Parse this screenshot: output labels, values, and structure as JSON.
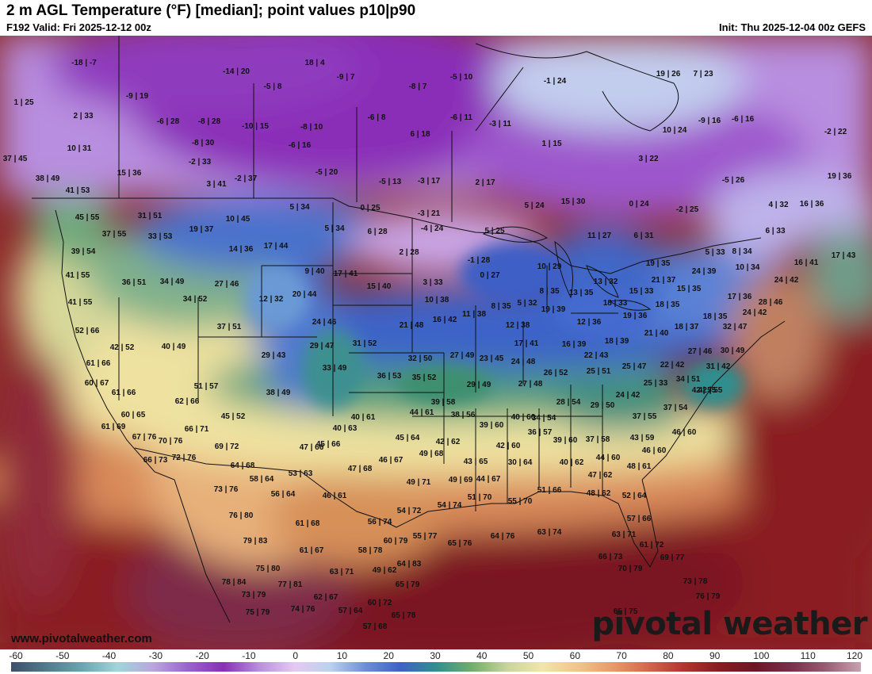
{
  "header": {
    "title": "2 m AGL Temperature (°F) [median]; point values p10|p90",
    "valid": "F192 Valid: Fri 2025-12-12 00z",
    "init": "Init: Thu 2025-12-04 00z GEFS"
  },
  "watermark": {
    "url": "www.pivotalweather.com",
    "logo": "pivotal weather"
  },
  "colorbar": {
    "labels": [
      "-60",
      "-50",
      "-40",
      "-30",
      "-20",
      "-10",
      "0",
      "10",
      "20",
      "30",
      "40",
      "50",
      "60",
      "70",
      "80",
      "90",
      "100",
      "110",
      "120"
    ],
    "colors": [
      "#3d4f6b",
      "#4f7c8c",
      "#67a6b0",
      "#9fd6d9",
      "#b9a6e0",
      "#9a62d0",
      "#8a2fb8",
      "#b88ee0",
      "#e4c9f2",
      "#bcd2f0",
      "#6d8fd8",
      "#3d62c8",
      "#2f8f8f",
      "#6fae6a",
      "#c9d49a",
      "#f1e6a8",
      "#f2c48a",
      "#e99a66",
      "#d5664a",
      "#b2352e",
      "#8a1c20",
      "#6e1627",
      "#7a2e4a",
      "#9a5a72",
      "#c7a2b0"
    ],
    "min": -60,
    "max": 120
  },
  "map": {
    "background": "#8c2a2a",
    "point_values": [
      "-18 | -7",
      "18 | 4",
      "-14 | 20",
      "-9 | 7",
      "-5 | 10",
      "-1 | 24",
      "19 | 26",
      "7 | 23",
      "1 | 25",
      "-9 | 19",
      "-5 | 8",
      "-8 | 7",
      "2 | 33",
      "-6 | 28",
      "-8 | 28",
      "-10 | 15",
      "-6 | 8",
      "-6 | 11",
      "-3 | 11",
      "-8 | 10",
      "10 | 24",
      "-9 | 16",
      "-6 | 16",
      "-2 | 22",
      "10 | 31",
      "-8 | 30",
      "-6 | 16",
      "6 | 18",
      "1 | 15",
      "37 | 45",
      "-2 | 33",
      "3 | 22",
      "15 | 36",
      "-5 | 20",
      "38 | 49",
      "3 | 41",
      "-2 | 37",
      "-5 | 13",
      "-3 | 17",
      "2 | 17",
      "-5 | 26",
      "19 | 36",
      "41 | 53",
      "5 | 34",
      "0 | 25",
      "-3 | 21",
      "5 | 24",
      "15 | 30",
      "0 | 24",
      "-2 | 25",
      "4 | 32",
      "16 | 36",
      "45 | 55",
      "31 | 51",
      "10 | 45",
      "19 | 37",
      "37 | 55",
      "5 | 34",
      "6 | 28",
      "-4 | 24",
      "5 | 25",
      "11 | 27",
      "6 | 31",
      "6 | 33",
      "33 | 53",
      "17 | 44",
      "14 | 36",
      "2 | 28",
      "39 | 54",
      "5 | 33",
      "8 | 34",
      "16 | 41",
      "17 | 43",
      "-1 | 28",
      "10 | 29",
      "19 | 35",
      "41 | 55",
      "9 | 40",
      "17 | 41",
      "0 | 27",
      "24 | 39",
      "10 | 34",
      "36 | 51",
      "34 | 49",
      "27 | 46",
      "3 | 33",
      "13 | 32",
      "21 | 37",
      "24 | 42",
      "15 | 40",
      "8 | 35",
      "13 | 35",
      "15 | 33",
      "15 | 35",
      "41 | 55",
      "34 | 52",
      "12 | 32",
      "20 | 44",
      "10 | 38",
      "5 | 32",
      "18 | 33",
      "18 | 35",
      "17 | 36",
      "28 | 46",
      "8 | 35",
      "19 | 39",
      "11 | 38",
      "24 | 42",
      "52 | 66",
      "37 | 51",
      "24 | 46",
      "21 | 48",
      "16 | 42",
      "12 | 38",
      "12 | 36",
      "19 | 36",
      "18 | 35",
      "32 | 47",
      "18 | 37",
      "42 | 52",
      "40 | 49",
      "29 | 47",
      "31 | 52",
      "17 | 41",
      "16 | 39",
      "18 | 39",
      "21 | 40",
      "27 | 46",
      "30 | 49",
      "61 | 66",
      "29 | 43",
      "32 | 50",
      "27 | 49",
      "23 | 45",
      "22 | 43",
      "24 | 48",
      "33 | 49",
      "25 | 51",
      "25 | 47",
      "22 | 42",
      "31 | 42",
      "60 | 67",
      "36 | 53",
      "35 | 52",
      "26 | 52",
      "61 | 66",
      "51 | 57",
      "38 | 49",
      "29 | 49",
      "27 | 48",
      "25 | 33",
      "34 | 51",
      "42 | 55",
      "62 | 66",
      "28 | 54",
      "24 | 42",
      "39 | 58",
      "29 | 50",
      "37 | 54",
      "60 | 65",
      "45 | 52",
      "44 | 61",
      "38 | 56",
      "40 | 60",
      "42 | 55",
      "40 | 61",
      "37 | 55",
      "61 | 69",
      "66 | 71",
      "39 | 60",
      "34 | 54",
      "46 | 60",
      "40 | 63",
      "36 | 57",
      "67 | 76",
      "70 | 76",
      "45 | 64",
      "37 | 58",
      "43 | 59",
      "45 | 66",
      "69 | 72",
      "47 | 66",
      "42 | 62",
      "42 | 60",
      "39 | 60",
      "46 | 60",
      "66 | 73",
      "72 | 76",
      "49 | 68",
      "44 | 60",
      "46 | 67",
      "64 | 68",
      "43 | 65",
      "30 | 64",
      "40 | 62",
      "48 | 61",
      "47 | 68",
      "53 | 63",
      "58 | 64",
      "49 | 71",
      "49 | 69",
      "44 | 67",
      "47 | 62",
      "73 | 76",
      "56 | 64",
      "46 | 61",
      "51 | 66",
      "48 | 62",
      "52 | 64",
      "51 | 70",
      "55 | 70",
      "54 | 74",
      "54 | 72",
      "76 | 80",
      "61 | 68",
      "56 | 74",
      "57 | 66",
      "55 | 77",
      "64 | 76",
      "63 | 74",
      "63 | 71",
      "65 | 76",
      "79 | 83",
      "60 | 79",
      "61 | 67",
      "58 | 78",
      "61 | 72",
      "64 | 83",
      "66 | 73",
      "69 | 77",
      "75 | 80",
      "63 | 71",
      "49 | 62",
      "70 | 79",
      "78 | 84",
      "77 | 81",
      "65 | 79",
      "73 | 78",
      "73 | 79",
      "62 | 67",
      "60 | 72",
      "76 | 79",
      "75 | 79",
      "74 | 76",
      "57 | 64",
      "65 | 78",
      "57 | 68",
      "65 | 75"
    ]
  }
}
